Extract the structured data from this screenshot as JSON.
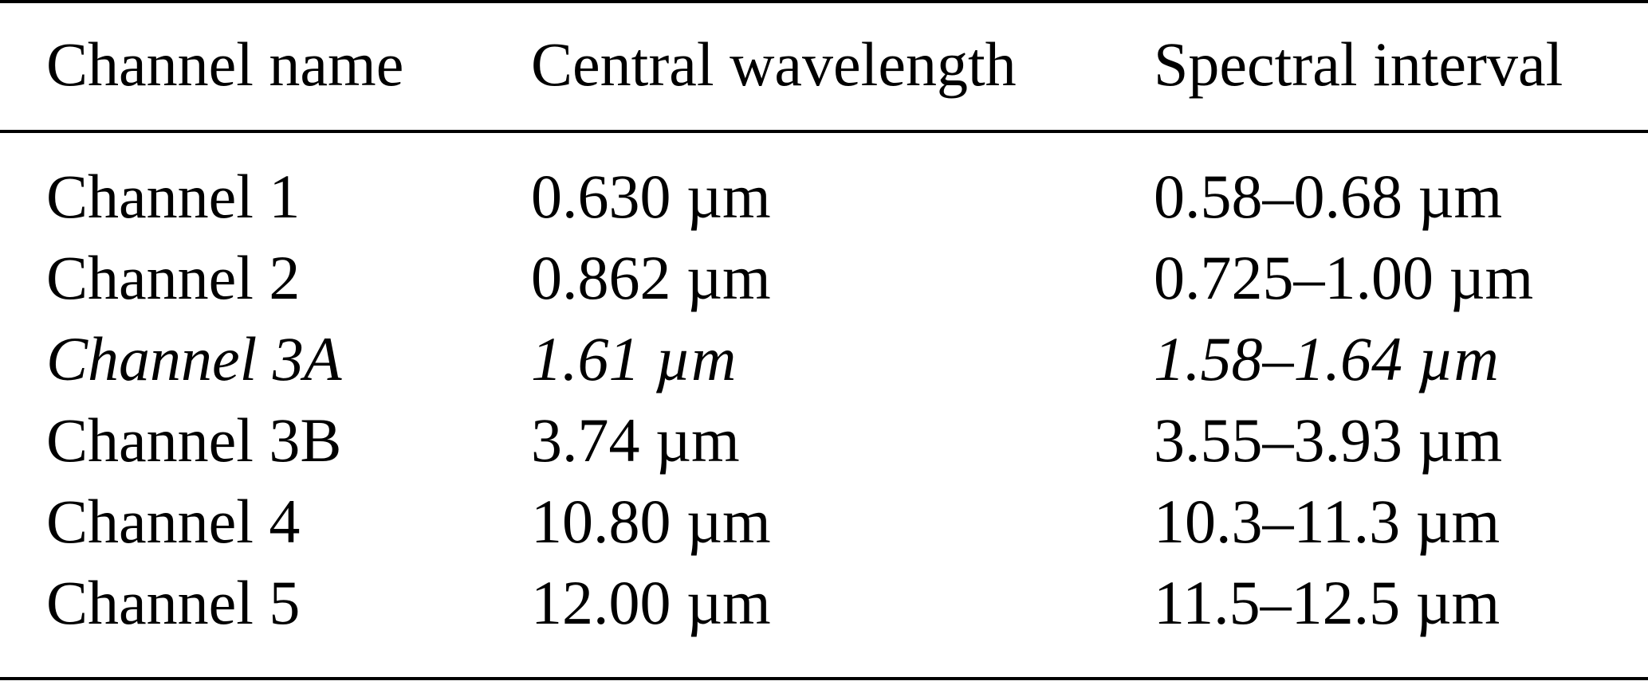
{
  "table": {
    "headers": [
      "Channel name",
      "Central wavelength",
      "Spectral interval"
    ],
    "rows": [
      {
        "cells": [
          "Channel 1",
          "0.630 µm",
          "0.58–0.68 µm"
        ],
        "italic": false
      },
      {
        "cells": [
          "Channel 2",
          "0.862 µm",
          "0.725–1.00 µm"
        ],
        "italic": false
      },
      {
        "cells": [
          "Channel 3A",
          "1.61 µm",
          "1.58–1.64 µm"
        ],
        "italic": true
      },
      {
        "cells": [
          "Channel 3B",
          "3.74 µm",
          "3.55–3.93 µm"
        ],
        "italic": false
      },
      {
        "cells": [
          "Channel 4",
          "10.80 µm",
          "10.3–11.3 µm"
        ],
        "italic": false
      },
      {
        "cells": [
          "Channel 5",
          "12.00 µm",
          "11.5–12.5 µm"
        ],
        "italic": false
      }
    ]
  }
}
